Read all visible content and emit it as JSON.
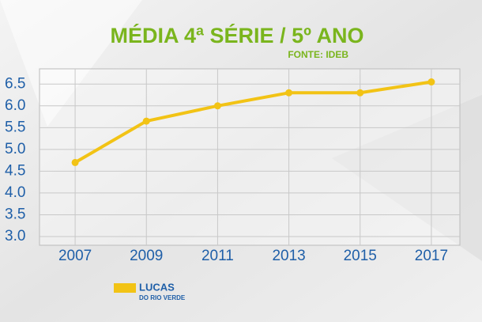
{
  "chart_data": {
    "type": "line",
    "title": "MÉDIA 4ª SÉRIE / 5º ANO",
    "subtitle": "FONTE: IDEB",
    "x": [
      2007,
      2009,
      2011,
      2013,
      2015,
      2017
    ],
    "series": [
      {
        "name": "LUCAS",
        "color": "#f2c315",
        "values": [
          4.7,
          5.65,
          6.0,
          6.3,
          6.3,
          6.55
        ]
      }
    ],
    "legend_note": "DO RIO VERDE",
    "xlim": [
      2006,
      2017.8
    ],
    "xticks": [
      2007,
      2009,
      2011,
      2013,
      2015,
      2017
    ],
    "ylim": [
      2.8,
      6.85
    ],
    "yticks": [
      {
        "value": 3,
        "label": "3.0"
      },
      3.5,
      {
        "value": 4,
        "label": "4.0"
      },
      4.5,
      {
        "value": 5,
        "label": "5.0"
      },
      5.5,
      {
        "value": 6,
        "label": "6.0"
      },
      6.5
    ],
    "grid": true
  }
}
